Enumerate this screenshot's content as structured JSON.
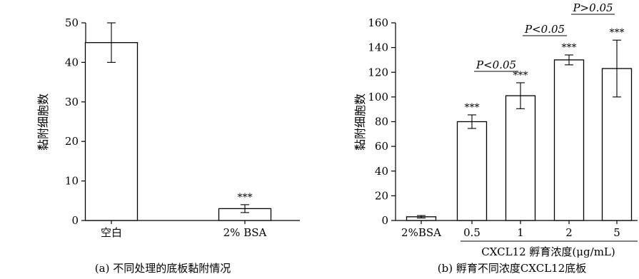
{
  "chart_data": [
    {
      "type": "bar",
      "caption": "(a) 不同处理的底板黏附情况",
      "ylabel": "黏附细胞数",
      "xlabel": "",
      "ylim": [
        0,
        50
      ],
      "yticks": [
        0,
        10,
        20,
        30,
        40,
        50
      ],
      "categories": [
        "空白",
        "2% BSA"
      ],
      "values": [
        45,
        3
      ],
      "errors": [
        5,
        1
      ],
      "significance": [
        "",
        "***"
      ]
    },
    {
      "type": "bar",
      "caption": "(b) 孵育不同浓度CXCL12底板",
      "ylabel": "黏附细胞数",
      "xlabel": "CXCL12 孵育浓度(μg/mL)",
      "ylim": [
        0,
        160
      ],
      "yticks": [
        0,
        20,
        40,
        60,
        80,
        100,
        120,
        140,
        160
      ],
      "categories": [
        "2%BSA",
        "0.5",
        "1",
        "2",
        "5"
      ],
      "values": [
        3,
        80,
        101,
        130,
        123
      ],
      "errors": [
        1,
        5.5,
        10.5,
        4,
        23
      ],
      "significance": [
        "",
        "***",
        "***",
        "***",
        "***"
      ],
      "comparisons": [
        {
          "from": 1,
          "to": 2,
          "label": "P<0.05"
        },
        {
          "from": 2,
          "to": 3,
          "label": "P<0.05"
        },
        {
          "from": 3,
          "to": 4,
          "label": "P>0.05"
        }
      ]
    }
  ]
}
